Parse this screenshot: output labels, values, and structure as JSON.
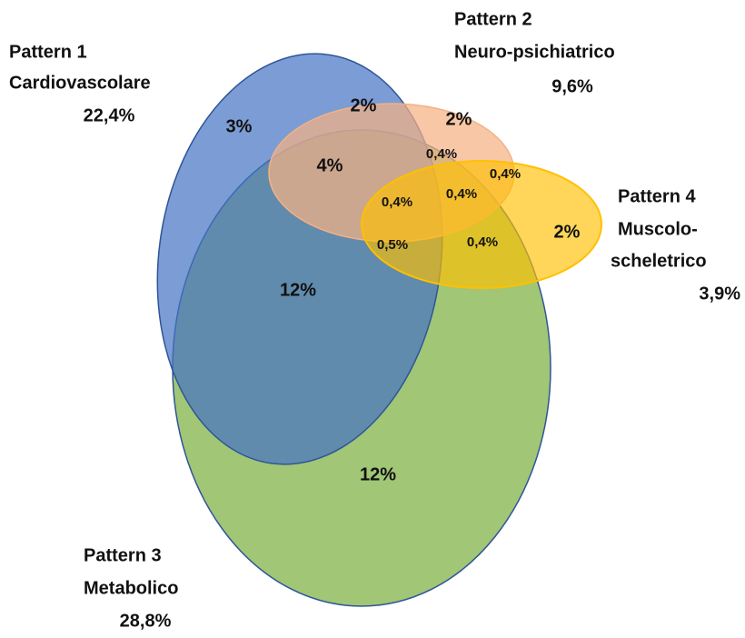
{
  "sets": [
    {
      "title": "Pattern 1",
      "name": [
        "Cardiovascolare"
      ],
      "share": "22,4%"
    },
    {
      "title": "Pattern 2",
      "name": [
        "Neuro-psichiatrico"
      ],
      "share": "9,6%"
    },
    {
      "title": "Pattern 3",
      "name": [
        "Metabolico"
      ],
      "share": "28,8%"
    },
    {
      "title": "Pattern 4",
      "name": [
        "Muscolo-",
        "scheletrico"
      ],
      "share": "3,9%"
    }
  ],
  "regions": [
    "3%",
    "2%",
    "2%",
    "4%",
    "0,4%",
    "0,4%",
    "0,4%",
    "0,4%",
    "0,5%",
    "0,4%",
    "2%",
    "12%",
    "12%"
  ]
}
